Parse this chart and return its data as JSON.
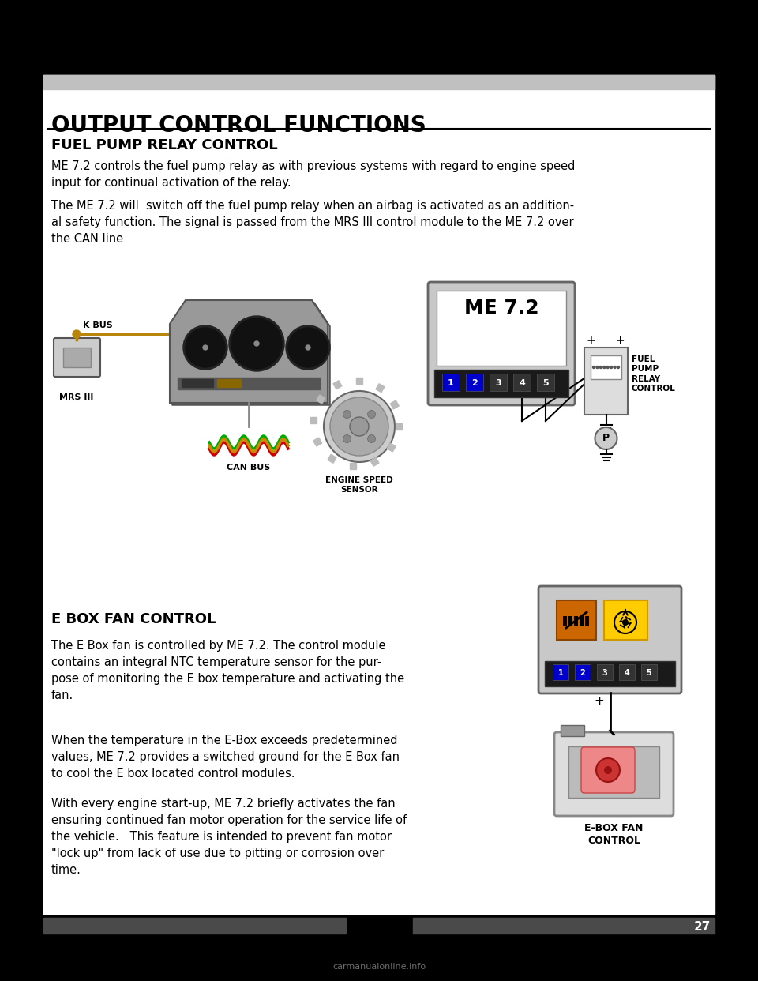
{
  "page_bg": "#000000",
  "content_bg": "#ffffff",
  "header_bar_color": "#c0c0c0",
  "title": "OUTPUT CONTROL FUNCTIONS",
  "section1_title": "FUEL PUMP RELAY CONTROL",
  "section1_para1": "ME 7.2 controls the fuel pump relay as with previous systems with regard to engine speed\ninput for continual activation of the relay.",
  "section1_para2": "The ME 7.2 will  switch off the fuel pump relay when an airbag is activated as an addition-\nal safety function. The signal is passed from the MRS III control module to the ME 7.2 over\nthe CAN line",
  "section2_title": "E BOX FAN CONTROL",
  "section2_para1": "The E Box fan is controlled by ME 7.2. The control module\ncontains an integral NTC temperature sensor for the pur-\npose of monitoring the E box temperature and activating the\nfan.",
  "section2_para2": "When the temperature in the E-Box exceeds predetermined\nvalues, ME 7.2 provides a switched ground for the E Box fan\nto cool the E box located control modules.",
  "section2_para3": "With every engine start-up, ME 7.2 briefly activates the fan\nensuring continued fan motor operation for the service life of\nthe vehicle.   This feature is intended to prevent fan motor\n\"lock up\" from lack of use due to pitting or corrosion over\ntime.",
  "page_number": "27",
  "footer_left_color": "#4a4a4a",
  "footer_right_color": "#4a4a4a",
  "watermark": "carmanualonline.info",
  "black_border": 40
}
